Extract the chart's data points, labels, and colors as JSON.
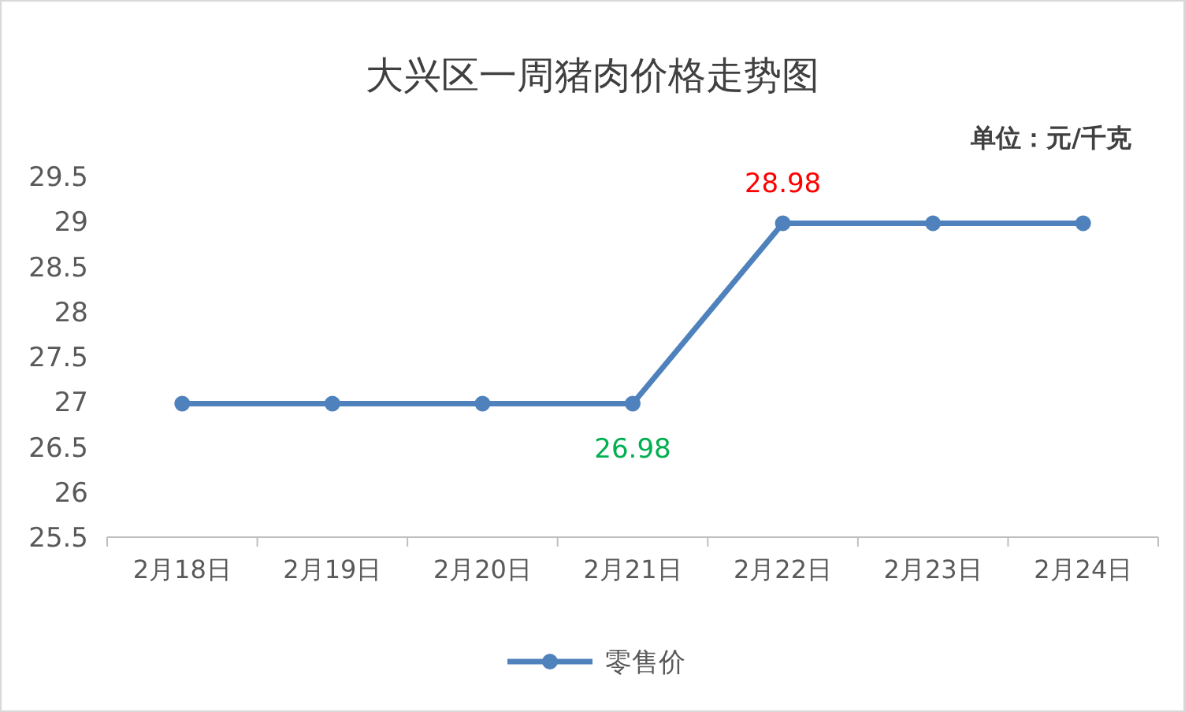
{
  "chart_data": {
    "type": "line",
    "title": "大兴区一周猪肉价格走势图",
    "annotations": [
      "单位：元/千克"
    ],
    "categories": [
      "2月18日",
      "2月19日",
      "2月20日",
      "2月21日",
      "2月22日",
      "2月23日",
      "2月24日"
    ],
    "series": [
      {
        "name": "零售价",
        "color": "#4f81bd",
        "values": [
          26.98,
          26.98,
          26.98,
          26.98,
          28.98,
          28.98,
          28.98
        ],
        "value_labels": [
          null,
          null,
          null,
          "26.98",
          "28.98",
          null,
          null
        ]
      }
    ],
    "ylim": [
      25.5,
      29.5
    ],
    "yticks": [
      25.5,
      26,
      26.5,
      27,
      27.5,
      28,
      28.5,
      29,
      29.5
    ],
    "grid": false,
    "legend": "bottom",
    "marker": "circle",
    "line_style": "solid"
  }
}
